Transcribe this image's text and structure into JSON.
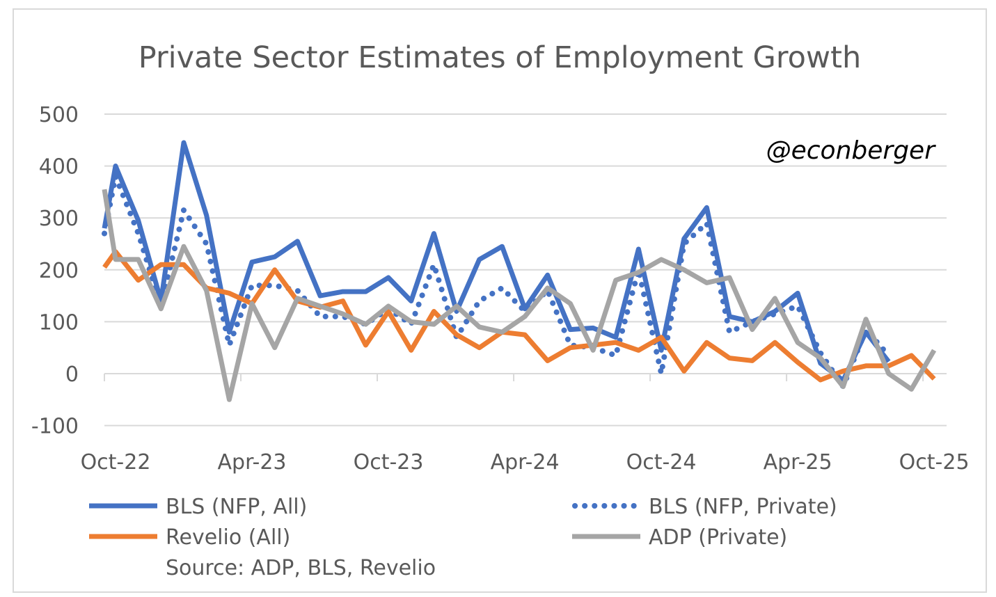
{
  "chart_data": {
    "type": "line",
    "title": "Private Sector Estimates of Employment Growth",
    "watermark": "@econberger",
    "source": "Source: ADP, BLS, Revelio",
    "xlabel": "",
    "ylabel": "",
    "ylim": [
      -100,
      500
    ],
    "yticks": [
      "500",
      "400",
      "300",
      "200",
      "100",
      "0",
      "-100"
    ],
    "ytick_values": [
      500,
      400,
      300,
      200,
      100,
      0,
      -100
    ],
    "xtick_labels": [
      "Oct-22",
      "Apr-23",
      "Oct-23",
      "Apr-24",
      "Oct-24",
      "Apr-25",
      "Oct-25"
    ],
    "xtick_index": [
      1,
      7,
      13,
      19,
      25,
      31,
      37
    ],
    "x": [
      "Sep-22",
      "Oct-22",
      "Nov-22",
      "Dec-22",
      "Jan-23",
      "Feb-23",
      "Mar-23",
      "Apr-23",
      "May-23",
      "Jun-23",
      "Jul-23",
      "Aug-23",
      "Sep-23",
      "Oct-23",
      "Nov-23",
      "Dec-23",
      "Jan-24",
      "Feb-24",
      "Mar-24",
      "Apr-24",
      "May-24",
      "Jun-24",
      "Jul-24",
      "Aug-24",
      "Sep-24",
      "Oct-24",
      "Nov-24",
      "Dec-24",
      "Jan-25",
      "Feb-25",
      "Mar-25",
      "Apr-25",
      "May-25",
      "Jun-25",
      "Jul-25",
      "Aug-25",
      "Sep-25",
      "Oct-25"
    ],
    "grid": true,
    "legend_position": "bottom",
    "series": [
      {
        "name": "BLS (NFP, All)",
        "color": "#4472C4",
        "style": "solid",
        "values": [
          280,
          400,
          295,
          140,
          445,
          305,
          80,
          215,
          225,
          255,
          150,
          158,
          158,
          185,
          140,
          270,
          120,
          220,
          245,
          125,
          190,
          85,
          88,
          70,
          240,
          45,
          260,
          320,
          110,
          100,
          120,
          155,
          20,
          -13,
          80,
          23,
          null,
          null
        ]
      },
      {
        "name": "BLS (NFP, Private)",
        "color": "#4472C4",
        "style": "dotted",
        "values": [
          270,
          380,
          270,
          130,
          315,
          250,
          55,
          170,
          170,
          160,
          110,
          110,
          95,
          125,
          95,
          210,
          70,
          140,
          165,
          120,
          160,
          55,
          50,
          35,
          200,
          0,
          250,
          290,
          80,
          100,
          115,
          130,
          40,
          -25,
          85,
          35,
          null,
          null
        ]
      },
      {
        "name": "Revelio (All)",
        "color": "#ED7D31",
        "style": "solid",
        "values": [
          205,
          235,
          180,
          210,
          210,
          165,
          155,
          135,
          200,
          140,
          128,
          140,
          55,
          120,
          45,
          120,
          75,
          50,
          80,
          75,
          25,
          50,
          55,
          60,
          45,
          70,
          5,
          60,
          30,
          25,
          60,
          22,
          -12,
          5,
          15,
          15,
          35,
          -10
        ]
      },
      {
        "name": "ADP (Private)",
        "color": "#A5A5A5",
        "style": "solid",
        "values": [
          355,
          220,
          220,
          125,
          245,
          160,
          -50,
          135,
          50,
          145,
          130,
          115,
          95,
          130,
          100,
          95,
          130,
          90,
          80,
          110,
          165,
          135,
          45,
          180,
          195,
          220,
          200,
          175,
          185,
          85,
          145,
          60,
          30,
          -25,
          105,
          0,
          -30,
          45
        ]
      }
    ]
  }
}
